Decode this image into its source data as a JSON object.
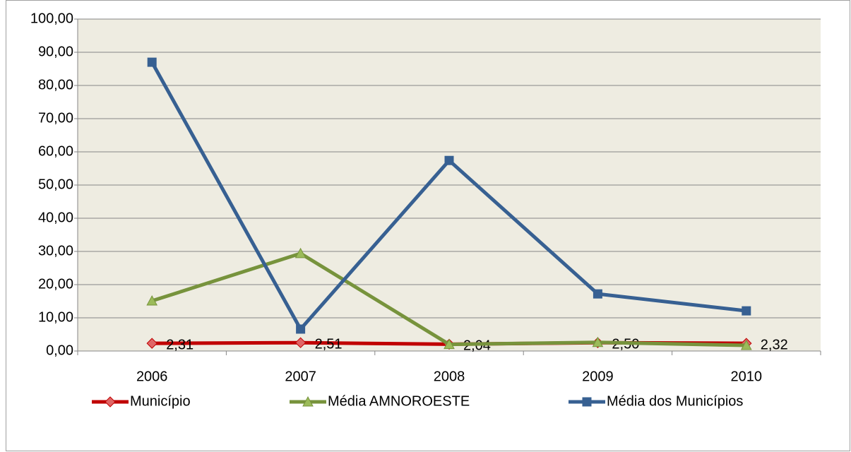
{
  "chart_data": {
    "type": "line",
    "categories": [
      "2006",
      "2007",
      "2008",
      "2009",
      "2010"
    ],
    "series": [
      {
        "name": "Município",
        "color": "#c00000",
        "marker": "diamond",
        "values": [
          2.31,
          2.51,
          2.04,
          2.5,
          2.32
        ],
        "value_labels": [
          "2,31",
          "2,51",
          "2,04",
          "2,50",
          "2,32"
        ]
      },
      {
        "name": "Média AMNOROESTE",
        "color": "#77933c",
        "marker": "triangle",
        "values": [
          15.1,
          29.4,
          2.0,
          2.6,
          1.7
        ]
      },
      {
        "name": "Média dos Municípios",
        "color": "#376092",
        "marker": "square",
        "values": [
          87.0,
          6.6,
          57.4,
          17.2,
          12.1
        ]
      }
    ],
    "ylim": [
      0,
      100
    ],
    "yticks": [
      {
        "value": 0,
        "label": "0,00"
      },
      {
        "value": 10,
        "label": "10,00"
      },
      {
        "value": 20,
        "label": "20,00"
      },
      {
        "value": 30,
        "label": "30,00"
      },
      {
        "value": 40,
        "label": "40,00"
      },
      {
        "value": 50,
        "label": "50,00"
      },
      {
        "value": 60,
        "label": "60,00"
      },
      {
        "value": 70,
        "label": "70,00"
      },
      {
        "value": 80,
        "label": "80,00"
      },
      {
        "value": 90,
        "label": "90,00"
      },
      {
        "value": 100,
        "label": "100,00"
      }
    ],
    "grid": true,
    "legend": "bottom"
  }
}
